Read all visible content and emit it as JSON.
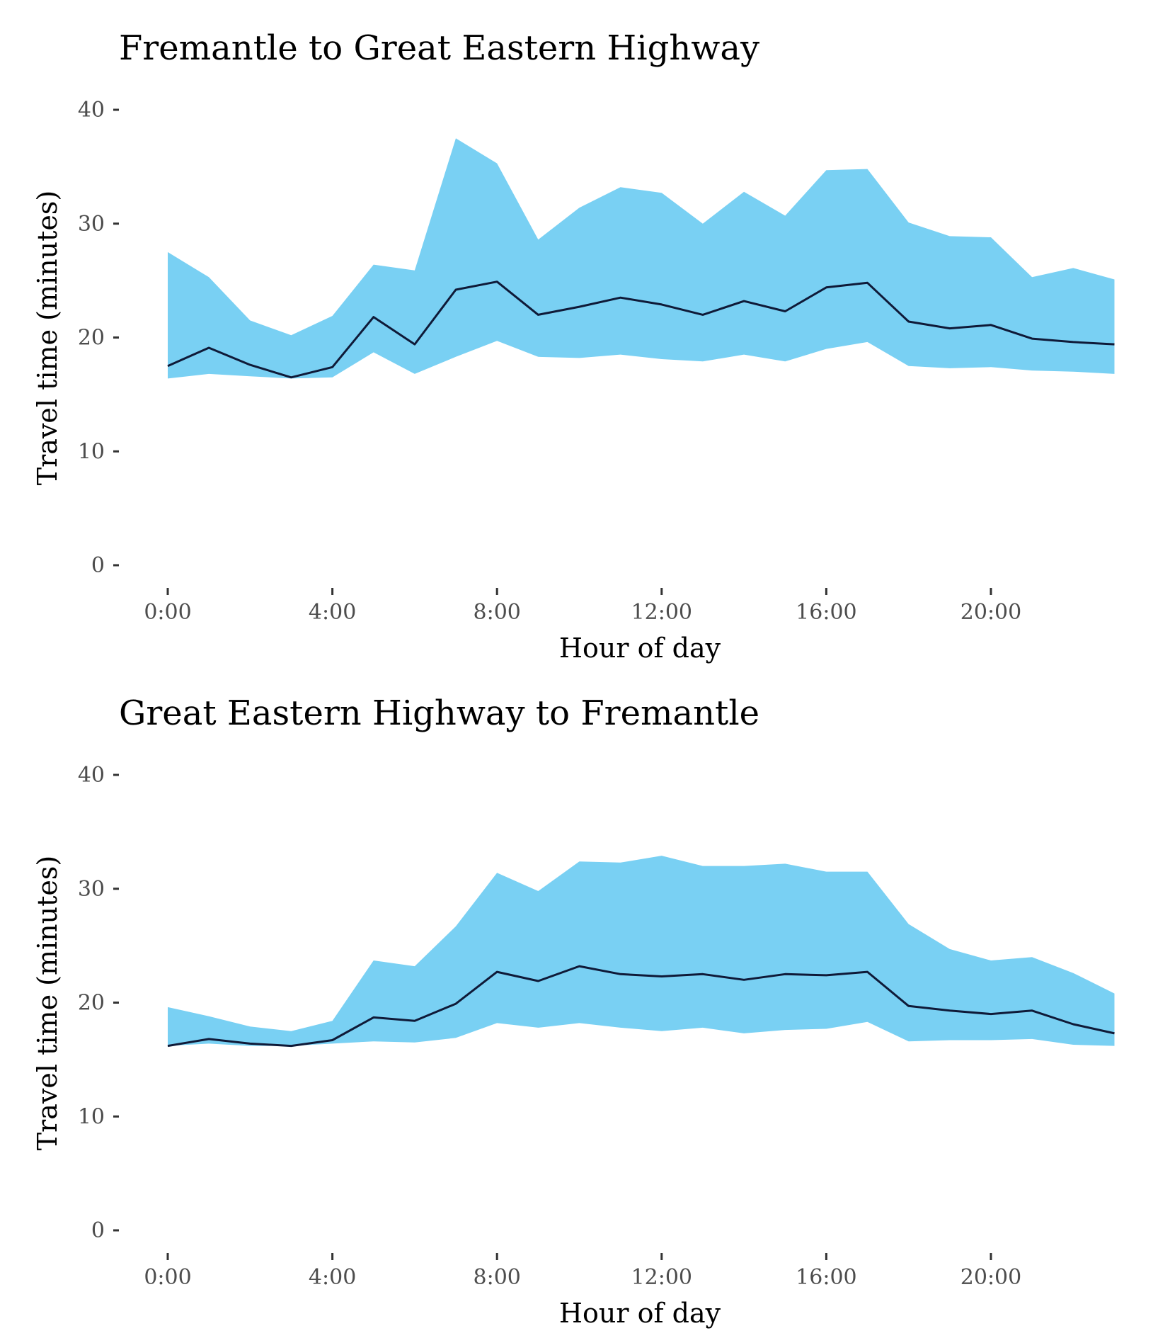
{
  "colors": {
    "band": "#79d0f3",
    "line": "#0f1a38",
    "tick_text": "#4d4d4d"
  },
  "chart_data": [
    {
      "type": "area",
      "title": "Fremantle to Great Eastern Highway",
      "xlabel": "Hour of day",
      "ylabel": "Travel time (minutes)",
      "x": [
        0,
        1,
        2,
        3,
        4,
        5,
        6,
        7,
        8,
        9,
        10,
        11,
        12,
        13,
        14,
        15,
        16,
        17,
        18,
        19,
        20,
        21,
        22,
        23
      ],
      "xlim": [
        -0.55,
        23
      ],
      "ylim": [
        0,
        40
      ],
      "x_ticks": [
        0,
        4,
        8,
        12,
        16,
        20
      ],
      "x_tick_labels": [
        "0:00",
        "4:00",
        "8:00",
        "12:00",
        "16:00",
        "20:00"
      ],
      "y_ticks": [
        0,
        10,
        20,
        30,
        40
      ],
      "y_tick_labels": [
        "0",
        "10",
        "20",
        "30",
        "40"
      ],
      "grid": false,
      "series": [
        {
          "role": "range",
          "upper": [
            27.5,
            25.3,
            21.5,
            20.2,
            21.9,
            26.4,
            25.9,
            37.5,
            35.3,
            28.6,
            31.4,
            33.2,
            32.7,
            30.0,
            32.8,
            30.7,
            34.7,
            34.8,
            30.1,
            28.9,
            28.8,
            25.3,
            26.1,
            25.1
          ],
          "lower": [
            16.4,
            16.8,
            16.6,
            16.4,
            16.5,
            18.7,
            16.8,
            18.3,
            19.7,
            18.3,
            18.2,
            18.5,
            18.1,
            17.9,
            18.5,
            17.9,
            19.0,
            19.6,
            17.5,
            17.3,
            17.4,
            17.1,
            17.0,
            16.8
          ]
        },
        {
          "role": "median",
          "values": [
            17.5,
            19.1,
            17.6,
            16.5,
            17.4,
            21.8,
            19.4,
            24.2,
            24.9,
            22.0,
            22.7,
            23.5,
            22.9,
            22.0,
            23.2,
            22.3,
            24.4,
            24.8,
            21.4,
            20.8,
            21.1,
            19.9,
            19.6,
            19.4
          ]
        }
      ]
    },
    {
      "type": "area",
      "title": "Great Eastern Highway to Fremantle",
      "xlabel": "Hour of day",
      "ylabel": "Travel time (minutes)",
      "x": [
        0,
        1,
        2,
        3,
        4,
        5,
        6,
        7,
        8,
        9,
        10,
        11,
        12,
        13,
        14,
        15,
        16,
        17,
        18,
        19,
        20,
        21,
        22,
        23
      ],
      "xlim": [
        -0.55,
        23
      ],
      "ylim": [
        0,
        40
      ],
      "x_ticks": [
        0,
        4,
        8,
        12,
        16,
        20
      ],
      "x_tick_labels": [
        "0:00",
        "4:00",
        "8:00",
        "12:00",
        "16:00",
        "20:00"
      ],
      "y_ticks": [
        0,
        10,
        20,
        30,
        40
      ],
      "y_tick_labels": [
        "0",
        "10",
        "20",
        "30",
        "40"
      ],
      "grid": false,
      "series": [
        {
          "role": "range",
          "upper": [
            19.6,
            18.8,
            17.9,
            17.5,
            18.4,
            23.7,
            23.2,
            26.7,
            31.4,
            29.8,
            32.4,
            32.3,
            32.9,
            32.0,
            32.0,
            32.2,
            31.5,
            31.5,
            26.9,
            24.7,
            23.7,
            24.0,
            22.6,
            20.8
          ],
          "lower": [
            16.2,
            16.4,
            16.2,
            16.2,
            16.4,
            16.6,
            16.5,
            16.9,
            18.2,
            17.8,
            18.2,
            17.8,
            17.5,
            17.8,
            17.3,
            17.6,
            17.7,
            18.3,
            16.6,
            16.7,
            16.7,
            16.8,
            16.3,
            16.2
          ]
        },
        {
          "role": "median",
          "values": [
            16.2,
            16.8,
            16.4,
            16.2,
            16.7,
            18.7,
            18.4,
            19.9,
            22.7,
            21.9,
            23.2,
            22.5,
            22.3,
            22.5,
            22.0,
            22.5,
            22.4,
            22.7,
            19.7,
            19.3,
            19.0,
            19.3,
            18.1,
            17.3
          ]
        }
      ]
    }
  ]
}
